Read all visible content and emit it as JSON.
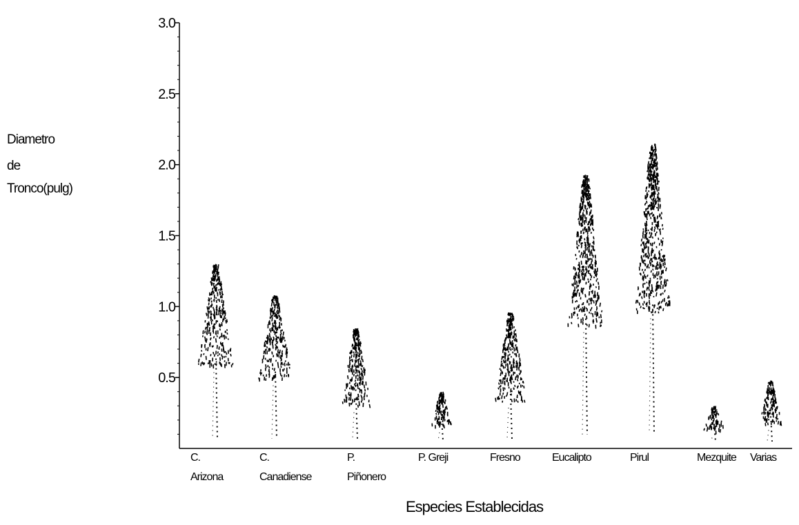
{
  "chart_data": {
    "type": "bar",
    "ylabel_lines": [
      "Diametro",
      "de",
      "Tronco(pulg)"
    ],
    "xlabel": "Especies Establecidas",
    "ylim": [
      0,
      3.0
    ],
    "yticks": [
      "0.5",
      "1.0",
      "1.5",
      "2.0",
      "2.5",
      "3.0"
    ],
    "categories": [
      [
        "C.",
        "Arizona"
      ],
      [
        "C.",
        "Canadiense"
      ],
      [
        "P.",
        "Piñonero"
      ],
      [
        "P. Greji"
      ],
      [
        "Fresno"
      ],
      [
        "Eucalipto"
      ],
      [
        "Pirul"
      ],
      [
        "Mezquite"
      ],
      [
        "Varias"
      ]
    ],
    "values": [
      1.3,
      1.08,
      0.85,
      0.4,
      0.96,
      1.93,
      2.15,
      0.3,
      0.48
    ],
    "mark_style": "tree-pictogram",
    "color": "#000000"
  }
}
